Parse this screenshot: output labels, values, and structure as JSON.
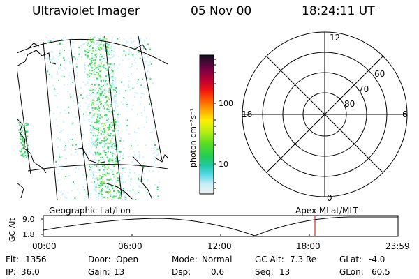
{
  "header": {
    "title": "Ultraviolet Imager",
    "date": "05 Nov 00",
    "time": "18:24:11 UT"
  },
  "colorbar": {
    "label": "photon cm⁻²s⁻¹",
    "ticks": [
      "100",
      "10"
    ]
  },
  "polar": {
    "mlt_labels": {
      "top": "12",
      "left": "18",
      "right": "6",
      "bottom": "0"
    },
    "lat_labels": [
      "60",
      "70",
      "80"
    ]
  },
  "timeline": {
    "left_label": "Geographic Lat/Lon",
    "right_label": "Apex MLat/MLT",
    "y_title": "GC Alt",
    "y_ticks": [
      "9.0",
      "1.8"
    ],
    "x_ticks": [
      "00:00",
      "06:00",
      "12:00",
      "18:00",
      "23:59"
    ],
    "marker_time": "18:24:11"
  },
  "info": {
    "row1": [
      {
        "label": "Flt:",
        "value": "1356"
      },
      {
        "label": "Door:",
        "value": "Open"
      },
      {
        "label": "Mode:",
        "value": "Normal"
      },
      {
        "label": "GC Alt:",
        "value": "7.3 Re"
      },
      {
        "label": "GLat:",
        "value": "-4.0"
      }
    ],
    "row2": [
      {
        "label": "IP:",
        "value": "36.0"
      },
      {
        "label": "Gain:",
        "value": "13"
      },
      {
        "label": "Dsp:",
        "value": "0.6"
      },
      {
        "label": "Seq:",
        "value": "13"
      },
      {
        "label": "GLon:",
        "value": "60.5"
      }
    ]
  },
  "colors": {
    "aurora_light": "#c8f0ff",
    "aurora_mid": "#33dd66",
    "aurora_high": "#99ee33",
    "marker": "#cc0000"
  }
}
